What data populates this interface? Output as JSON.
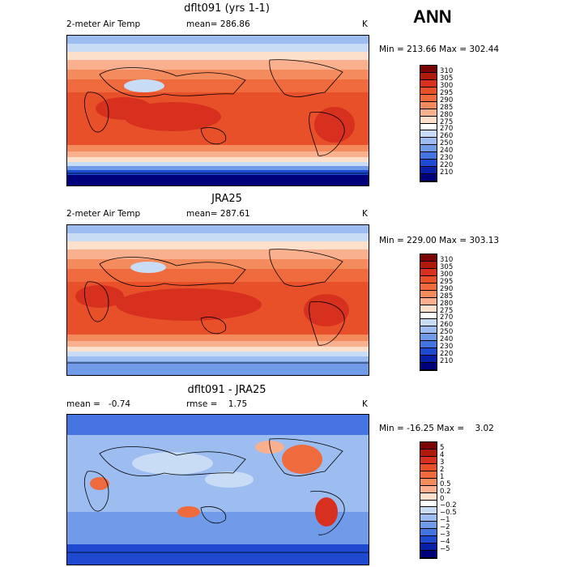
{
  "season": "ANN",
  "panels": [
    {
      "id": "model",
      "title": "dflt091 (yrs 1-1)",
      "left": "2-meter Air Temp",
      "mid": "mean= 286.86",
      "units": "K",
      "range": "Min = 213.66 Max = 302.44",
      "kind": "abs"
    },
    {
      "id": "obs",
      "title": "JRA25",
      "left": "2-meter Air Temp",
      "mid": "mean= 287.61",
      "units": "K",
      "range": "Min = 229.00 Max = 303.13",
      "kind": "abs"
    },
    {
      "id": "diff",
      "title": "dflt091 - JRA25",
      "left": "mean =   -0.74",
      "mid": "rmse =    1.75",
      "units": "K",
      "range": "Min = -16.25 Max =    3.02",
      "kind": "diff"
    }
  ],
  "colorbars": {
    "abs": {
      "labels": [
        "310",
        "305",
        "300",
        "295",
        "290",
        "285",
        "280",
        "275",
        "270",
        "260",
        "250",
        "240",
        "230",
        "220",
        "210"
      ],
      "colors": [
        "#7a0403",
        "#b01a0a",
        "#d7301f",
        "#e8502a",
        "#ef6b3e",
        "#f48b5c",
        "#f9b08f",
        "#fde0cc",
        "#ffffff",
        "#c9dcf5",
        "#9dbdf0",
        "#6f9be8",
        "#4474e0",
        "#1d4ad0",
        "#0a1fa8",
        "#00007a"
      ]
    },
    "diff": {
      "labels": [
        "5",
        "4",
        "3",
        "2",
        "1",
        "0.5",
        "0.2",
        "0",
        "−0.2",
        "−0.5",
        "−1",
        "−2",
        "−3",
        "−4",
        "−5"
      ],
      "colors": [
        "#7a0403",
        "#b01a0a",
        "#d7301f",
        "#e8502a",
        "#ef6b3e",
        "#f48b5c",
        "#f9b08f",
        "#fde0cc",
        "#ffffff",
        "#c9dcf5",
        "#9dbdf0",
        "#6f9be8",
        "#4474e0",
        "#1d4ad0",
        "#0a1fa8",
        "#00007a"
      ]
    }
  }
}
